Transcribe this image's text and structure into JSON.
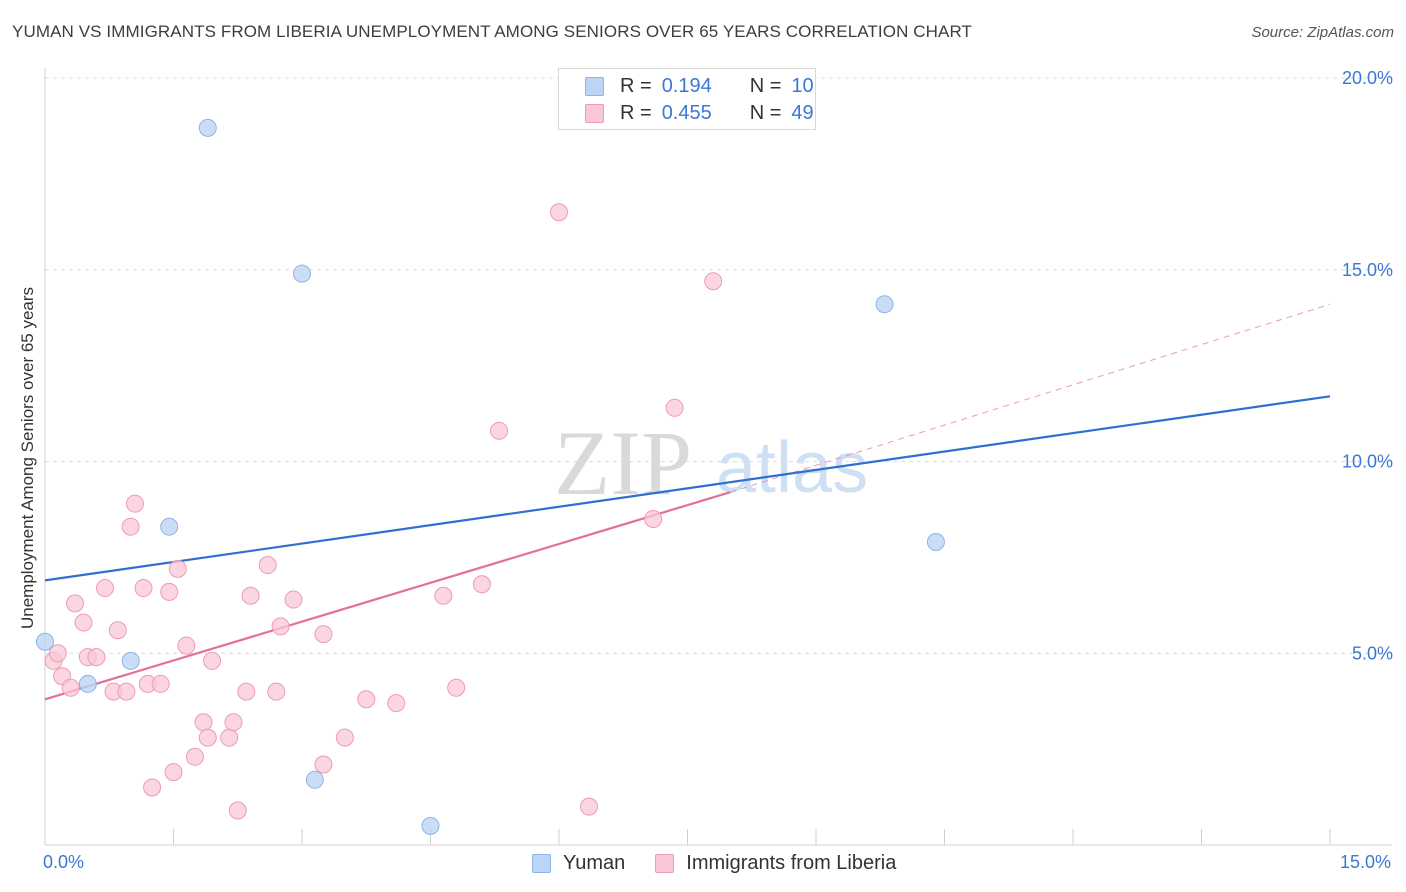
{
  "title": "YUMAN VS IMMIGRANTS FROM LIBERIA UNEMPLOYMENT AMONG SENIORS OVER 65 YEARS CORRELATION CHART",
  "source": "Source: ZipAtlas.com",
  "watermark": {
    "zip": "ZIP",
    "atlas": "atlas"
  },
  "legend": {
    "rows": [
      {
        "r_label": "R =",
        "r_value": "0.194",
        "n_label": "N =",
        "n_value": "10"
      },
      {
        "r_label": "R =",
        "r_value": "0.455",
        "n_label": "N =",
        "n_value": "49"
      }
    ]
  },
  "bottom_legend": [
    "Yuman",
    "Immigrants from Liberia"
  ],
  "colors": {
    "yuman_fill": "#bcd4f5",
    "yuman_stroke": "#8fb3e6",
    "yuman_line": "#2f6fd1",
    "liberia_fill": "#f9c8d6",
    "liberia_stroke": "#ee9bb3",
    "liberia_line": "#e2709a",
    "accent_text": "#3b78d4",
    "grid": "#dcdcdc"
  },
  "chart_data": {
    "type": "scatter",
    "title": "YUMAN VS IMMIGRANTS FROM LIBERIA UNEMPLOYMENT AMONG SENIORS OVER 65 YEARS CORRELATION CHART",
    "xlabel": "",
    "ylabel": "Unemployment Among Seniors over 65 years",
    "xlim": [
      0,
      15
    ],
    "ylim": [
      0,
      20
    ],
    "x_tick_labels": [
      "0.0%",
      "15.0%"
    ],
    "y_ticks": [
      5,
      10,
      15,
      20
    ],
    "y_tick_labels": [
      "5.0%",
      "10.0%",
      "15.0%",
      "20.0%"
    ],
    "series": [
      {
        "name": "Yuman",
        "r": 0.194,
        "n": 10,
        "points": [
          [
            0.0,
            5.3
          ],
          [
            0.5,
            4.2
          ],
          [
            1.0,
            4.8
          ],
          [
            1.45,
            8.3
          ],
          [
            1.9,
            18.7
          ],
          [
            3.0,
            14.9
          ],
          [
            3.15,
            1.7
          ],
          [
            4.5,
            0.5
          ],
          [
            9.8,
            14.1
          ],
          [
            10.4,
            7.9
          ]
        ],
        "trend": {
          "x0": 0.0,
          "y0": 6.9,
          "x1": 15.0,
          "y1": 11.7
        }
      },
      {
        "name": "Immigrants from Liberia",
        "r": 0.455,
        "n": 49,
        "points": [
          [
            0.1,
            4.8
          ],
          [
            0.15,
            5.0
          ],
          [
            0.2,
            4.4
          ],
          [
            0.3,
            4.1
          ],
          [
            0.35,
            6.3
          ],
          [
            0.45,
            5.8
          ],
          [
            0.5,
            4.9
          ],
          [
            0.6,
            4.9
          ],
          [
            0.7,
            6.7
          ],
          [
            0.8,
            4.0
          ],
          [
            0.85,
            5.6
          ],
          [
            0.95,
            4.0
          ],
          [
            1.0,
            8.3
          ],
          [
            1.05,
            8.9
          ],
          [
            1.15,
            6.7
          ],
          [
            1.2,
            4.2
          ],
          [
            1.25,
            1.5
          ],
          [
            1.35,
            4.2
          ],
          [
            1.45,
            6.6
          ],
          [
            1.5,
            1.9
          ],
          [
            1.55,
            7.2
          ],
          [
            1.65,
            5.2
          ],
          [
            1.75,
            2.3
          ],
          [
            1.85,
            3.2
          ],
          [
            1.9,
            2.8
          ],
          [
            1.95,
            4.8
          ],
          [
            2.15,
            2.8
          ],
          [
            2.2,
            3.2
          ],
          [
            2.25,
            0.9
          ],
          [
            2.35,
            4.0
          ],
          [
            2.4,
            6.5
          ],
          [
            2.6,
            7.3
          ],
          [
            2.7,
            4.0
          ],
          [
            2.75,
            5.7
          ],
          [
            2.9,
            6.4
          ],
          [
            3.25,
            2.1
          ],
          [
            3.25,
            5.5
          ],
          [
            3.5,
            2.8
          ],
          [
            3.75,
            3.8
          ],
          [
            4.1,
            3.7
          ],
          [
            4.65,
            6.5
          ],
          [
            4.8,
            4.1
          ],
          [
            5.1,
            6.8
          ],
          [
            5.3,
            10.8
          ],
          [
            6.0,
            16.5
          ],
          [
            6.35,
            1.0
          ],
          [
            7.1,
            8.5
          ],
          [
            7.35,
            11.4
          ],
          [
            7.8,
            14.7
          ]
        ],
        "trend": {
          "x0": 0.0,
          "y0": 3.8,
          "x1": 8.0,
          "y1": 9.2
        },
        "trend_extension": {
          "x0": 8.0,
          "y0": 9.2,
          "x1": 15.0,
          "y1": 14.1
        }
      }
    ]
  }
}
